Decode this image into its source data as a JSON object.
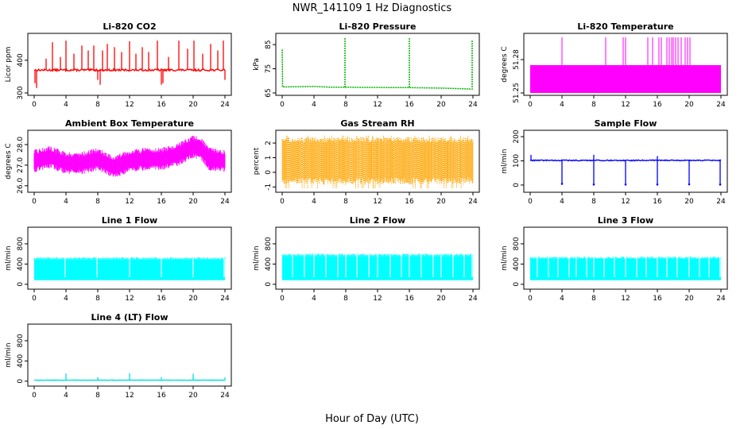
{
  "figure": {
    "title": "NWR_141109  1 Hz Diagnostics",
    "xlabel": "Hour of Day (UTC)"
  },
  "chart_data": [
    {
      "id": "co2",
      "type": "line",
      "title": "Li-820 CO2",
      "ylabel": "Licor ppm",
      "color": "#ff0000",
      "xlim": [
        0,
        24
      ],
      "ylim": [
        300,
        470
      ],
      "xticks": [
        0,
        4,
        8,
        12,
        16,
        20,
        24
      ],
      "yticks": [
        300,
        400
      ],
      "baseline": 370,
      "noise": 3,
      "spikes": [
        [
          0.1,
          330
        ],
        [
          0.3,
          315
        ],
        [
          1.5,
          405
        ],
        [
          2.3,
          455
        ],
        [
          3.3,
          410
        ],
        [
          4.0,
          460
        ],
        [
          5.0,
          420
        ],
        [
          6.0,
          445
        ],
        [
          6.8,
          430
        ],
        [
          7.5,
          445
        ],
        [
          8.0,
          340
        ],
        [
          8.3,
          325
        ],
        [
          8.6,
          430
        ],
        [
          9.2,
          450
        ],
        [
          10.1,
          440
        ],
        [
          11.0,
          425
        ],
        [
          12.0,
          458
        ],
        [
          12.8,
          420
        ],
        [
          13.6,
          440
        ],
        [
          14.4,
          425
        ],
        [
          15.5,
          460
        ],
        [
          16.0,
          325
        ],
        [
          16.2,
          330
        ],
        [
          16.9,
          410
        ],
        [
          18.2,
          460
        ],
        [
          19.3,
          435
        ],
        [
          20.1,
          460
        ],
        [
          21.2,
          420
        ],
        [
          22.2,
          450
        ],
        [
          23.1,
          430
        ],
        [
          23.8,
          460
        ],
        [
          24.0,
          340
        ]
      ]
    },
    {
      "id": "pressure",
      "type": "line",
      "title": "Li-820 Pressure",
      "ylabel": "kPa",
      "color": "#00b400",
      "xlim": [
        0,
        24
      ],
      "ylim": [
        65,
        88
      ],
      "xticks": [
        0,
        4,
        8,
        12,
        16,
        20,
        24
      ],
      "yticks": [
        65,
        75,
        85
      ],
      "series": [
        {
          "x": [
            0,
            0.05,
            0.3,
            2,
            4,
            6,
            8,
            10,
            12,
            14,
            16,
            18,
            20,
            22,
            23.8,
            24
          ],
          "y": [
            83,
            67.5,
            67.5,
            67.6,
            67.7,
            67.4,
            67.4,
            67.3,
            67.3,
            67.2,
            67.2,
            67.1,
            67.0,
            66.8,
            66.6,
            66.6
          ]
        }
      ],
      "spikes": [
        [
          7.9,
          88
        ],
        [
          16.0,
          88
        ],
        [
          23.9,
          87
        ]
      ]
    },
    {
      "id": "licor_temp",
      "type": "area",
      "title": "Li-820 Temperature",
      "ylabel": "degrees C",
      "color": "#ff00ff",
      "xlim": [
        0,
        24
      ],
      "ylim": [
        51.25,
        51.3
      ],
      "xticks": [
        0,
        4,
        8,
        12,
        16,
        20,
        24
      ],
      "yticks": [
        51.25,
        51.28
      ],
      "band": [
        51.25,
        51.275
      ],
      "spikes": [
        [
          4.0,
          51.3
        ],
        [
          9.5,
          51.3
        ],
        [
          11.7,
          51.3
        ],
        [
          12.0,
          51.3
        ],
        [
          14.8,
          51.3
        ],
        [
          15.4,
          51.3
        ],
        [
          16.2,
          51.3
        ],
        [
          16.5,
          51.3
        ],
        [
          17.2,
          51.3
        ],
        [
          17.5,
          51.3
        ],
        [
          17.8,
          51.3
        ],
        [
          18.0,
          51.3
        ],
        [
          18.3,
          51.3
        ],
        [
          18.6,
          51.3
        ],
        [
          19.0,
          51.3
        ],
        [
          19.5,
          51.3
        ],
        [
          19.8,
          51.3
        ],
        [
          20.1,
          51.3
        ]
      ]
    },
    {
      "id": "ambient_temp",
      "type": "area",
      "title": "Ambient Box Temperature",
      "ylabel": "degrees C",
      "color": "#ff00ff",
      "xlim": [
        0,
        24
      ],
      "ylim": [
        25.8,
        28.5
      ],
      "xticks": [
        0,
        4,
        8,
        12,
        16,
        20,
        24
      ],
      "yticks": [
        26.0,
        27.0,
        28.0
      ],
      "mid": {
        "x": [
          0,
          2,
          4,
          6,
          8,
          10,
          12,
          14,
          16,
          18,
          20,
          21,
          22,
          24
        ],
        "y": [
          27.2,
          27.4,
          27.1,
          27.1,
          27.3,
          26.9,
          27.2,
          27.3,
          27.3,
          27.5,
          27.9,
          27.8,
          27.3,
          27.2
        ]
      },
      "amplitude": 0.55
    },
    {
      "id": "rh",
      "type": "area",
      "title": "Gas Stream RH",
      "ylabel": "percent",
      "color": "#ffa500",
      "xlim": [
        0,
        24
      ],
      "ylim": [
        -1.2,
        2.6
      ],
      "xticks": [
        0,
        4,
        8,
        12,
        16,
        20,
        24
      ],
      "yticks": [
        -1,
        0,
        1,
        2
      ],
      "band": [
        -0.6,
        2.2
      ],
      "extremes": [
        -1.1,
        2.5
      ]
    },
    {
      "id": "sample_flow",
      "type": "line",
      "title": "Sample Flow",
      "ylabel": "ml/min",
      "color": "#0000ff",
      "xlim": [
        0,
        24
      ],
      "ylim": [
        -20,
        210
      ],
      "xticks": [
        0,
        4,
        8,
        12,
        16,
        20,
        24
      ],
      "yticks": [
        0,
        100,
        200
      ],
      "baseline": 102,
      "noise": 2,
      "dips": [
        [
          4.0,
          5
        ],
        [
          8.0,
          2
        ],
        [
          12.0,
          2
        ],
        [
          16.0,
          2
        ],
        [
          20.0,
          3
        ],
        [
          23.9,
          2
        ]
      ],
      "spikes": [
        [
          0.1,
          125
        ],
        [
          8.0,
          125
        ],
        [
          16.0,
          120
        ]
      ]
    },
    {
      "id": "line1",
      "type": "area",
      "title": "Line 1 Flow",
      "ylabel": "ml/min",
      "color": "#00ffff",
      "xlim": [
        0,
        24
      ],
      "ylim": [
        -50,
        1050
      ],
      "xticks": [
        0,
        4,
        8,
        12,
        16,
        20,
        24
      ],
      "yticks": [
        0,
        400,
        800
      ],
      "band": [
        80,
        490
      ],
      "gaps": [
        3.9,
        7.9,
        12.0,
        16.0,
        20.0,
        23.9
      ]
    },
    {
      "id": "line2",
      "type": "area",
      "title": "Line 2 Flow",
      "ylabel": "ml/min",
      "color": "#00ffff",
      "xlim": [
        0,
        24
      ],
      "ylim": [
        -50,
        1050
      ],
      "xticks": [
        0,
        4,
        8,
        12,
        16,
        20,
        24
      ],
      "yticks": [
        0,
        400,
        800
      ],
      "band": [
        80,
        560
      ],
      "gaps": [
        1.3,
        2.8,
        4.0,
        5.5,
        7.0,
        8.0,
        9.4,
        10.9,
        12.0,
        13.6,
        15.0,
        16.0,
        17.5,
        19.0,
        20.0,
        21.5,
        22.9,
        23.9
      ]
    },
    {
      "id": "line3",
      "type": "area",
      "title": "Line 3 Flow",
      "ylabel": "ml/min",
      "color": "#00ffff",
      "xlim": [
        0,
        24
      ],
      "ylim": [
        -50,
        1050
      ],
      "xticks": [
        0,
        4,
        8,
        12,
        16,
        20,
        24
      ],
      "yticks": [
        0,
        400,
        800
      ],
      "band": [
        80,
        500
      ],
      "gaps": [
        0.9,
        2.3,
        3.5,
        4.9,
        5.8,
        7.1,
        8.0,
        9.3,
        10.6,
        12.0,
        13.4,
        14.6,
        16.0,
        17.2,
        18.5,
        20.0,
        21.3,
        22.5,
        23.9
      ]
    },
    {
      "id": "line4",
      "type": "line",
      "title": "Line 4 (LT) Flow",
      "ylabel": "ml/min",
      "color": "#00e0e0",
      "xlim": [
        0,
        24
      ],
      "ylim": [
        -50,
        1050
      ],
      "xticks": [
        0,
        4,
        8,
        12,
        16,
        20,
        24
      ],
      "yticks": [
        0,
        400,
        800
      ],
      "baseline": 20,
      "noise": 4,
      "spikes": [
        [
          4.0,
          150
        ],
        [
          8.0,
          80
        ],
        [
          12.0,
          160
        ],
        [
          16.0,
          80
        ],
        [
          20.0,
          150
        ],
        [
          24.0,
          80
        ]
      ]
    }
  ]
}
